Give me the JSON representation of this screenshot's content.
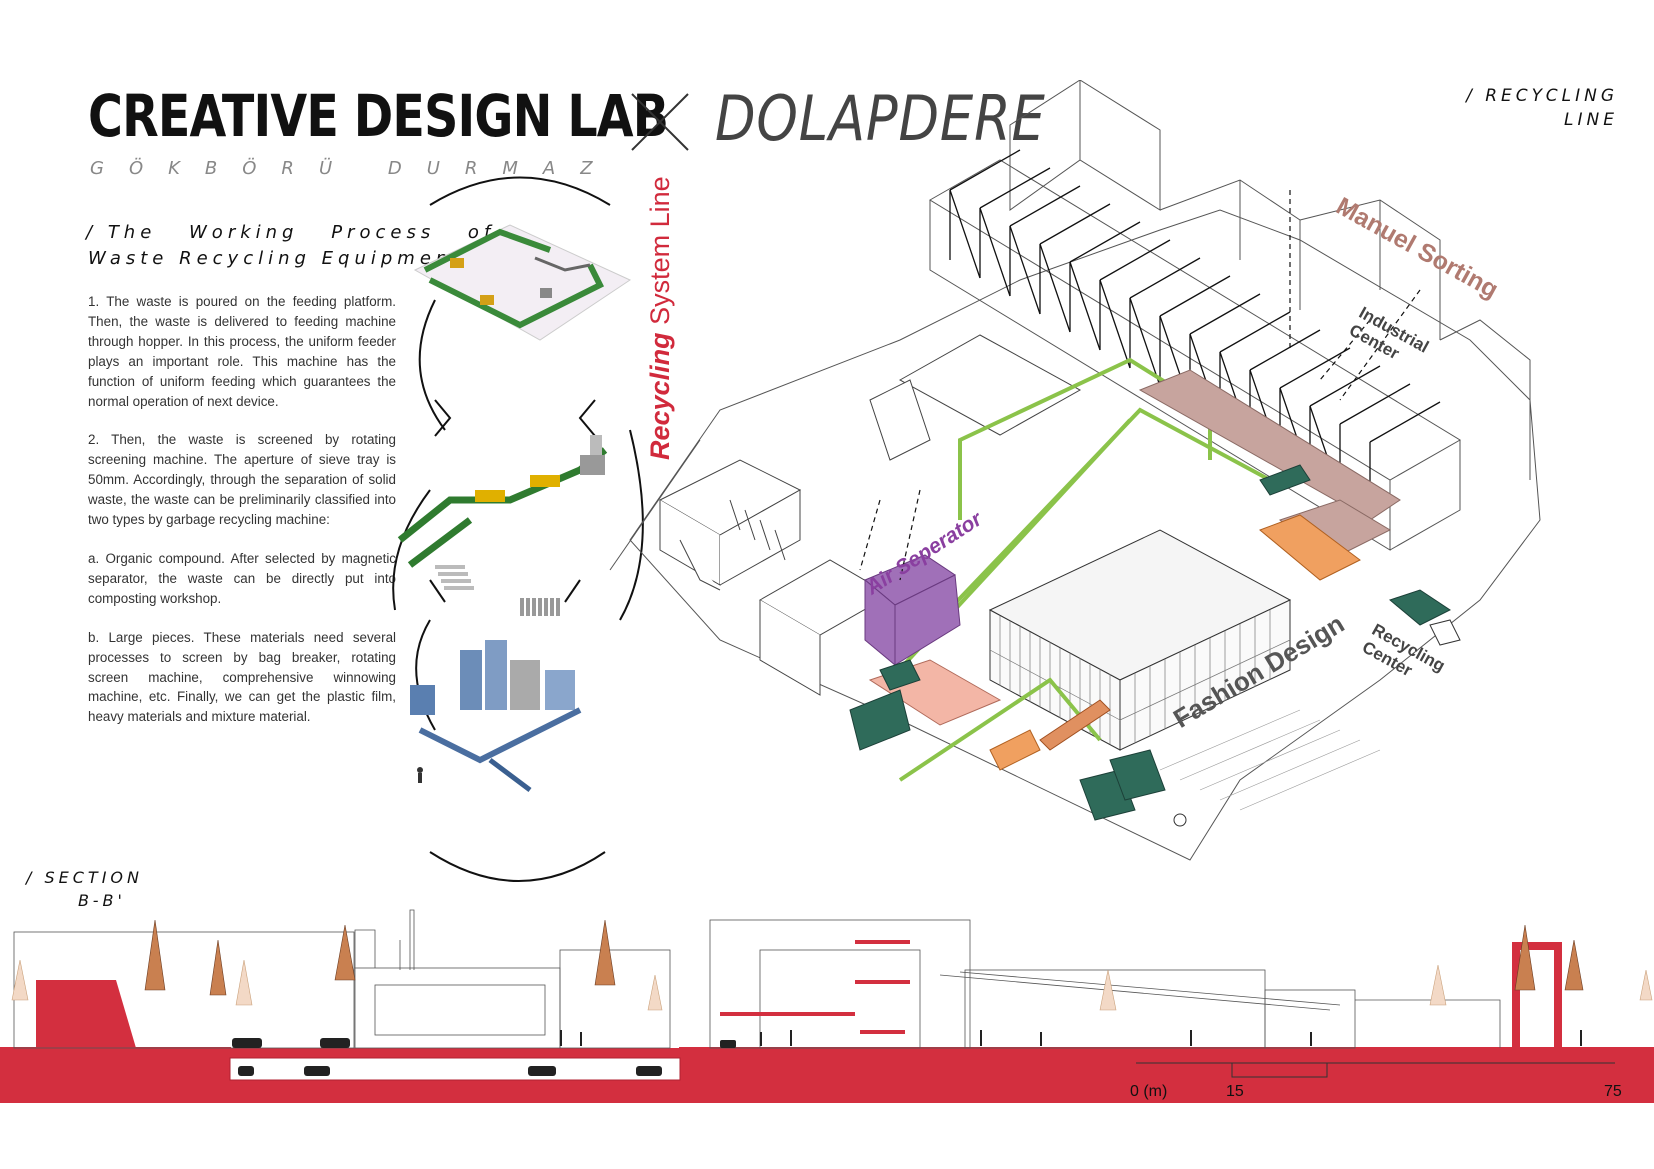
{
  "header": {
    "title": "CREATIVE DESIGN LAB",
    "connector": "X",
    "subtitle": "DOLAPDERE",
    "author": "GÖKBÖRÜ DURMAZ"
  },
  "section_heading": {
    "slash": "/",
    "line1": "The Working Process of",
    "line2": "Waste Recycling Equipment"
  },
  "paragraphs": [
    "1. The waste is poured on the feeding platform. Then, the waste is delivered to feeding machine through hopper. In this process, the uniform feeder plays an important role. This machine has the function of uniform feeding which guarantees the normal operation of next device.",
    "2. Then, the waste is screened by rotating screening machine. The aperture of sieve tray is 50mm. Accordingly, through the separation of solid waste, the waste can be preliminarily classified into two types by garbage recycling machine:",
    "a. Organic compound. After selected by magnetic separator, the waste can be directly put into composting workshop.",
    "b. Large pieces. These materials need several processes to screen by bag breaker, rotating screen machine, comprehensive winnowing machine, etc. Finally, we can get the plastic film, heavy materials and mixture material."
  ],
  "vertical_label": {
    "bold": "Recycling",
    "rest": " System Line"
  },
  "corner_label": {
    "line1": "/ RECYCLING",
    "line2": "LINE"
  },
  "axon_labels": {
    "manual_sorting": "Manuel Sorting",
    "industrial_center": "Industrial Center",
    "air_separator": "Air Seperator",
    "fashion_design": "Fashion Design",
    "recycling_center": "Recycling Center"
  },
  "section_label": {
    "line1": "/ SECTION",
    "line2": "B-B'"
  },
  "scale_bar": {
    "zero": "0 (m)",
    "mid": "15",
    "end": "75"
  },
  "colors": {
    "accent_red": "#d32f3f",
    "label_brown": "#b07a70",
    "air_purple": "#8a3fa0",
    "line_green": "#8bc34a",
    "machine_green": "#2f6b5a"
  }
}
